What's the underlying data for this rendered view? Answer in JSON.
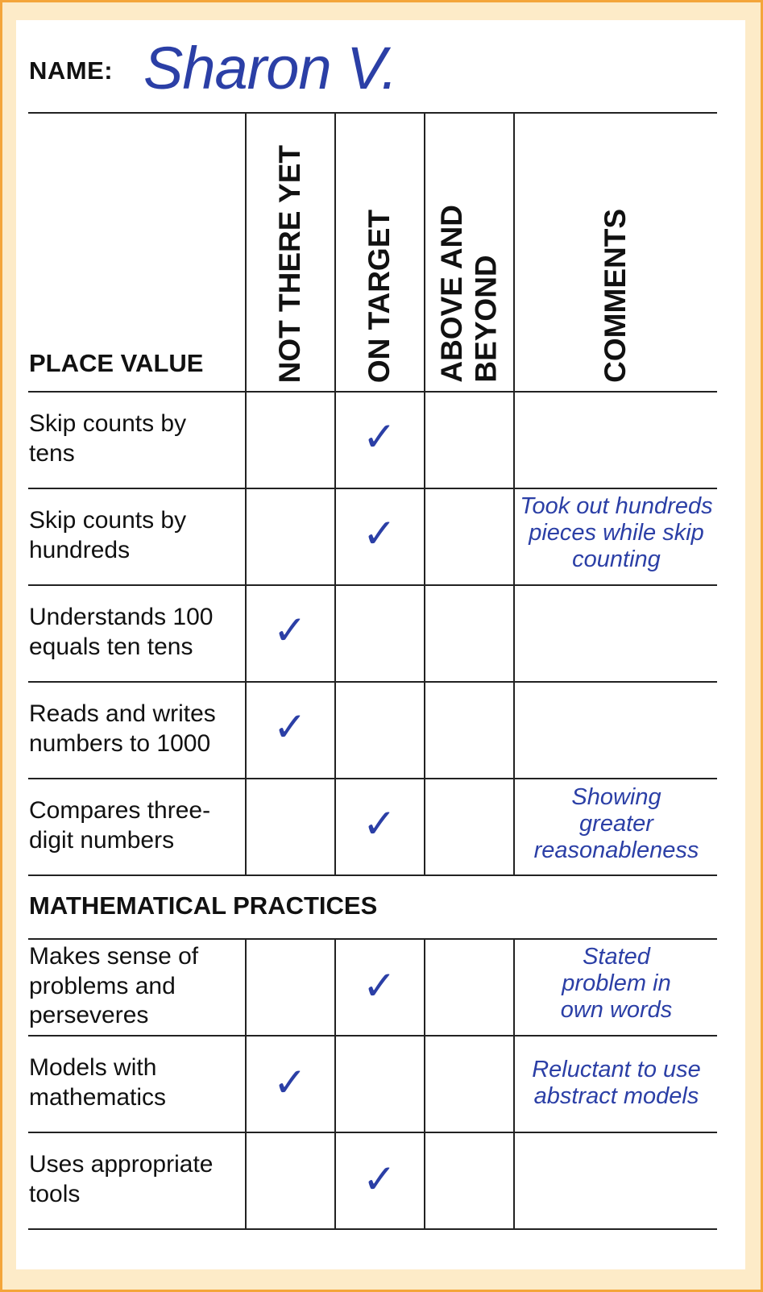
{
  "header": {
    "name_label": "NAME:",
    "name_value": "Sharon V."
  },
  "columns": {
    "not_there_yet": "NOT THERE YET",
    "on_target": "ON TARGET",
    "above_and_beyond": "ABOVE AND\nBEYOND",
    "comments": "COMMENTS"
  },
  "check_mark": "✓",
  "sections": {
    "place_value": {
      "title": "PLACE VALUE",
      "rows": [
        {
          "skill": "Skip counts by\ntens",
          "rating": "ON TARGET",
          "comment": ""
        },
        {
          "skill": "Skip counts by\nhundreds",
          "rating": "ON TARGET",
          "comment": "Took out hundreds\npieces while skip\ncounting"
        },
        {
          "skill": "Understands 100\nequals ten tens",
          "rating": "NOT THERE YET",
          "comment": ""
        },
        {
          "skill": "Reads and writes\nnumbers to 1000",
          "rating": "NOT THERE YET",
          "comment": ""
        },
        {
          "skill": "Compares three-\ndigit numbers",
          "rating": "ON TARGET",
          "comment": "Showing\ngreater\nreasonableness"
        }
      ]
    },
    "mathematical_practices": {
      "title": "MATHEMATICAL PRACTICES",
      "rows": [
        {
          "skill": "Makes sense of\nproblems and\nperseveres",
          "rating": "ON TARGET",
          "comment": "Stated\nproblem in\nown words"
        },
        {
          "skill": "Models with\nmathematics",
          "rating": "NOT THERE YET",
          "comment": "Reluctant to use\nabstract models"
        },
        {
          "skill": "Uses appropriate\ntools",
          "rating": "ON TARGET",
          "comment": ""
        }
      ]
    }
  },
  "colors": {
    "border": "#f4a53a",
    "background": "#fdebc8",
    "handwriting": "#2b3fa6"
  }
}
